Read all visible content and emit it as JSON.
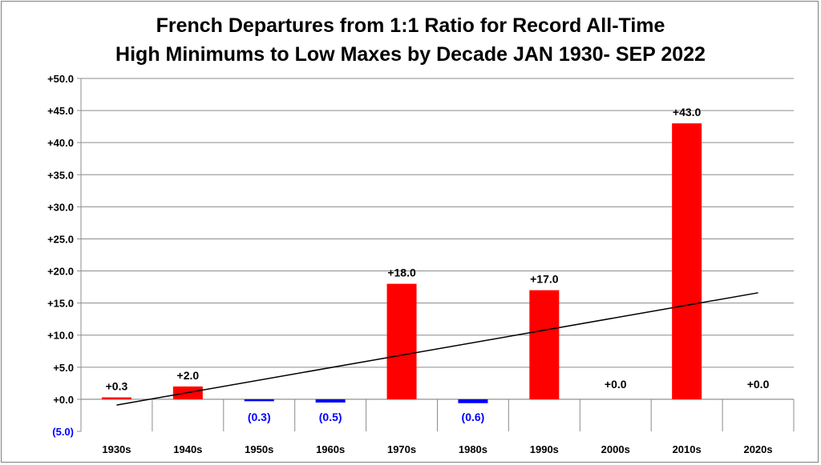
{
  "chart_data": {
    "type": "bar",
    "title_lines": [
      "French Departures from 1:1 Ratio for Record All-Time",
      "High Minimums to Low Maxes by Decade JAN 1930- SEP 2022"
    ],
    "categories": [
      "1930s",
      "1940s",
      "1950s",
      "1960s",
      "1970s",
      "1980s",
      "1990s",
      "2000s",
      "2010s",
      "2020s"
    ],
    "values": [
      0.3,
      2.0,
      -0.3,
      -0.5,
      18.0,
      -0.6,
      17.0,
      0.0,
      43.0,
      0.0
    ],
    "data_labels": [
      "+0.3",
      "+2.0",
      "(0.3)",
      "(0.5)",
      "+18.0",
      "(0.6)",
      "+17.0",
      "+0.0",
      "+43.0",
      "+0.0"
    ],
    "ylim": [
      -5,
      50
    ],
    "yticks": [
      50,
      45,
      40,
      35,
      30,
      25,
      20,
      15,
      10,
      5,
      0,
      -5
    ],
    "ytick_labels": [
      "+50.0",
      "+45.0",
      "+40.0",
      "+35.0",
      "+30.0",
      "+25.0",
      "+20.0",
      "+15.0",
      "+10.0",
      "+5.0",
      "+0.0",
      "(5.0)"
    ],
    "trendline": {
      "start_value": -0.9,
      "end_value": 16.6
    },
    "grid": true,
    "legend": "none",
    "colors": {
      "positive": "#ff0000",
      "negative": "#0000ff",
      "gridline": "#8c8c8c",
      "trendline": "#000000",
      "text": "#000000"
    }
  }
}
